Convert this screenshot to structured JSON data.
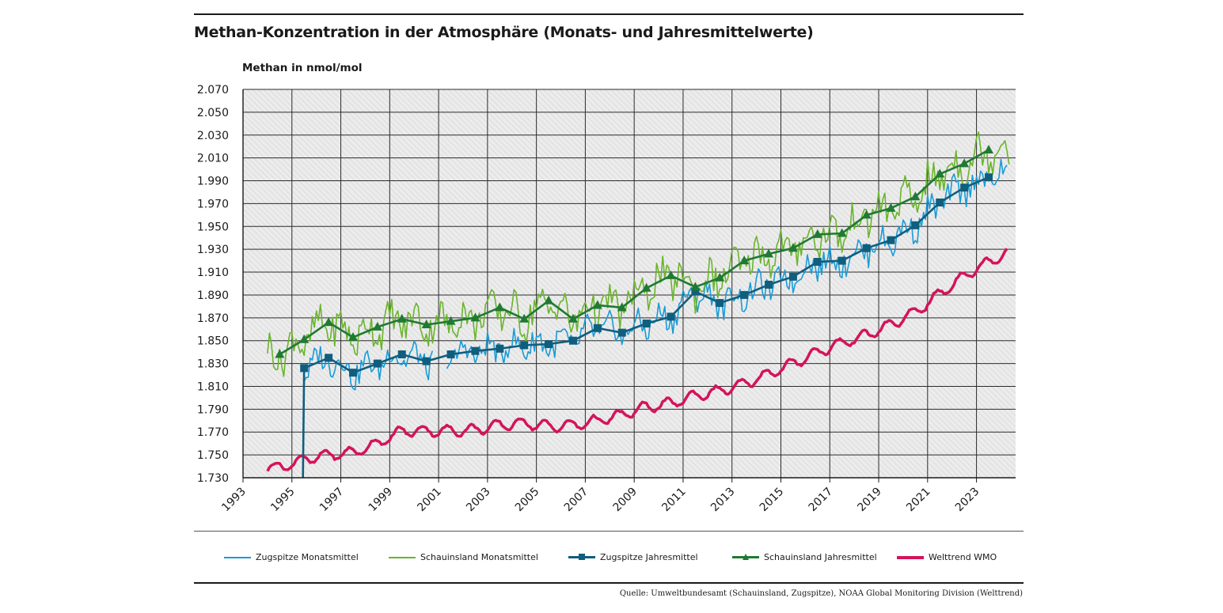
{
  "title": "Methan-Konzentration in der Atmosphäre (Monats- und Jahresmittelwerte)",
  "source": "Quelle: Umweltbundesamt (Schauinsland, Zugspitze), NOAA Global Monitoring Division (Welttrend)",
  "colors": {
    "zugspitze_monthly": "#1a9bd7",
    "schauinsland_monthly": "#6ab42d",
    "zugspitze_annual": "#0f5e7e",
    "schauinsland_annual": "#1f7a32",
    "wmo": "#d4145a"
  },
  "chart_data": {
    "type": "line",
    "title": "Methan-Konzentration in der Atmosphäre (Monats- und Jahresmittelwerte)",
    "ylabel": "Methan in nmol/mol",
    "xlabel": "",
    "xlim": [
      1993,
      2024.6
    ],
    "ylim": [
      1730,
      2070
    ],
    "yticks": [
      1730,
      1750,
      1770,
      1790,
      1810,
      1830,
      1850,
      1870,
      1890,
      1910,
      1930,
      1950,
      1970,
      1990,
      2010,
      2030,
      2050,
      2070
    ],
    "ytick_labels": [
      "1.730",
      "1.750",
      "1.770",
      "1.790",
      "1.810",
      "1.830",
      "1.850",
      "1.870",
      "1.890",
      "1.910",
      "1.930",
      "1.950",
      "1.970",
      "1.990",
      "2.010",
      "2.030",
      "2.050",
      "2.070"
    ],
    "xticks": [
      1993,
      1995,
      1997,
      1999,
      2001,
      2003,
      2005,
      2007,
      2009,
      2011,
      2013,
      2015,
      2017,
      2019,
      2021,
      2023
    ],
    "grid": true,
    "legend_position": "bottom",
    "series": [
      {
        "name": "Zugspitze Monatsmittel",
        "style": "monthly",
        "annual_base": [
          [
            1995,
            1826
          ],
          [
            1996,
            1835
          ],
          [
            1997,
            1822
          ],
          [
            1998,
            1830
          ],
          [
            1999,
            1838
          ],
          [
            2000,
            1832
          ],
          [
            2001,
            1838
          ],
          [
            2002,
            1841
          ],
          [
            2003,
            1843
          ],
          [
            2004,
            1846
          ],
          [
            2005,
            1847
          ],
          [
            2006,
            1850
          ],
          [
            2007,
            1861
          ],
          [
            2008,
            1857
          ],
          [
            2009,
            1865
          ],
          [
            2010,
            1871
          ],
          [
            2011,
            1893
          ],
          [
            2012,
            1883
          ],
          [
            2013,
            1890
          ],
          [
            2014,
            1899
          ],
          [
            2015,
            1906
          ],
          [
            2016,
            1919
          ],
          [
            2017,
            1920
          ],
          [
            2018,
            1931
          ],
          [
            2019,
            1938
          ],
          [
            2020,
            1951
          ],
          [
            2021,
            1971
          ],
          [
            2022,
            1984
          ],
          [
            2023,
            1993
          ]
        ],
        "start_year": 1995.5,
        "end_year": 2024.3,
        "gap": [
          2000.8,
          2001.3
        ],
        "amplitude": 12
      },
      {
        "name": "Schauinsland Monatsmittel",
        "style": "monthly",
        "annual_base": [
          [
            1994,
            1838
          ],
          [
            1995,
            1851
          ],
          [
            1996,
            1866
          ],
          [
            1997,
            1853
          ],
          [
            1998,
            1862
          ],
          [
            1999,
            1869
          ],
          [
            2000,
            1864
          ],
          [
            2001,
            1867
          ],
          [
            2002,
            1870
          ],
          [
            2003,
            1879
          ],
          [
            2004,
            1869
          ],
          [
            2005,
            1885
          ],
          [
            2006,
            1869
          ],
          [
            2007,
            1881
          ],
          [
            2008,
            1879
          ],
          [
            2009,
            1896
          ],
          [
            2010,
            1907
          ],
          [
            2011,
            1897
          ],
          [
            2012,
            1905
          ],
          [
            2013,
            1920
          ],
          [
            2014,
            1926
          ],
          [
            2015,
            1931
          ],
          [
            2016,
            1943
          ],
          [
            2017,
            1944
          ],
          [
            2018,
            1960
          ],
          [
            2019,
            1966
          ],
          [
            2020,
            1976
          ],
          [
            2021,
            1996
          ],
          [
            2022,
            2005
          ],
          [
            2023,
            2017
          ]
        ],
        "start_year": 1994.0,
        "end_year": 2024.4,
        "gap": null,
        "amplitude": 16
      },
      {
        "name": "Zugspitze Jahresmittel",
        "style": "annual-square",
        "x": [
          1995,
          1996,
          1997,
          1998,
          1999,
          2000,
          2001,
          2002,
          2003,
          2004,
          2005,
          2006,
          2007,
          2008,
          2009,
          2010,
          2011,
          2012,
          2013,
          2014,
          2015,
          2016,
          2017,
          2018,
          2019,
          2020,
          2021,
          2022,
          2023
        ],
        "y": [
          1826,
          1835,
          1822,
          1830,
          1838,
          1832,
          1838,
          1841,
          1843,
          1846,
          1847,
          1850,
          1861,
          1857,
          1865,
          1871,
          1893,
          1883,
          1890,
          1899,
          1906,
          1919,
          1920,
          1931,
          1938,
          1951,
          1971,
          1984,
          1993
        ],
        "lead_in": [
          1995.45,
          1730
        ]
      },
      {
        "name": "Schauinsland Jahresmittel",
        "style": "annual-triangle",
        "x": [
          1994,
          1995,
          1996,
          1997,
          1998,
          1999,
          2000,
          2001,
          2002,
          2003,
          2004,
          2005,
          2006,
          2007,
          2008,
          2009,
          2010,
          2011,
          2012,
          2013,
          2014,
          2015,
          2016,
          2017,
          2018,
          2019,
          2020,
          2021,
          2022,
          2023
        ],
        "y": [
          1838,
          1851,
          1866,
          1853,
          1862,
          1869,
          1864,
          1867,
          1870,
          1879,
          1869,
          1885,
          1869,
          1881,
          1879,
          1896,
          1907,
          1897,
          1905,
          1920,
          1926,
          1931,
          1943,
          1944,
          1960,
          1966,
          1976,
          1996,
          2005,
          2017
        ]
      },
      {
        "name": "Welttrend WMO",
        "style": "trend",
        "annual_base": [
          [
            1994,
            1739
          ],
          [
            1995,
            1746
          ],
          [
            1996,
            1750
          ],
          [
            1997,
            1752
          ],
          [
            1998,
            1760
          ],
          [
            1999,
            1771
          ],
          [
            2000,
            1771
          ],
          [
            2001,
            1771
          ],
          [
            2002,
            1772
          ],
          [
            2003,
            1776
          ],
          [
            2004,
            1778
          ],
          [
            2005,
            1775
          ],
          [
            2006,
            1776
          ],
          [
            2007,
            1780
          ],
          [
            2008,
            1785
          ],
          [
            2009,
            1792
          ],
          [
            2010,
            1795
          ],
          [
            2011,
            1802
          ],
          [
            2012,
            1806
          ],
          [
            2013,
            1812
          ],
          [
            2014,
            1821
          ],
          [
            2015,
            1830
          ],
          [
            2016,
            1840
          ],
          [
            2017,
            1848
          ],
          [
            2018,
            1855
          ],
          [
            2019,
            1864
          ],
          [
            2020,
            1875
          ],
          [
            2021,
            1891
          ],
          [
            2022,
            1907
          ],
          [
            2023,
            1919
          ],
          [
            2024,
            1930
          ]
        ],
        "start_year": 1994.0,
        "end_year": 2024.3,
        "amplitude": 4.5
      }
    ]
  }
}
